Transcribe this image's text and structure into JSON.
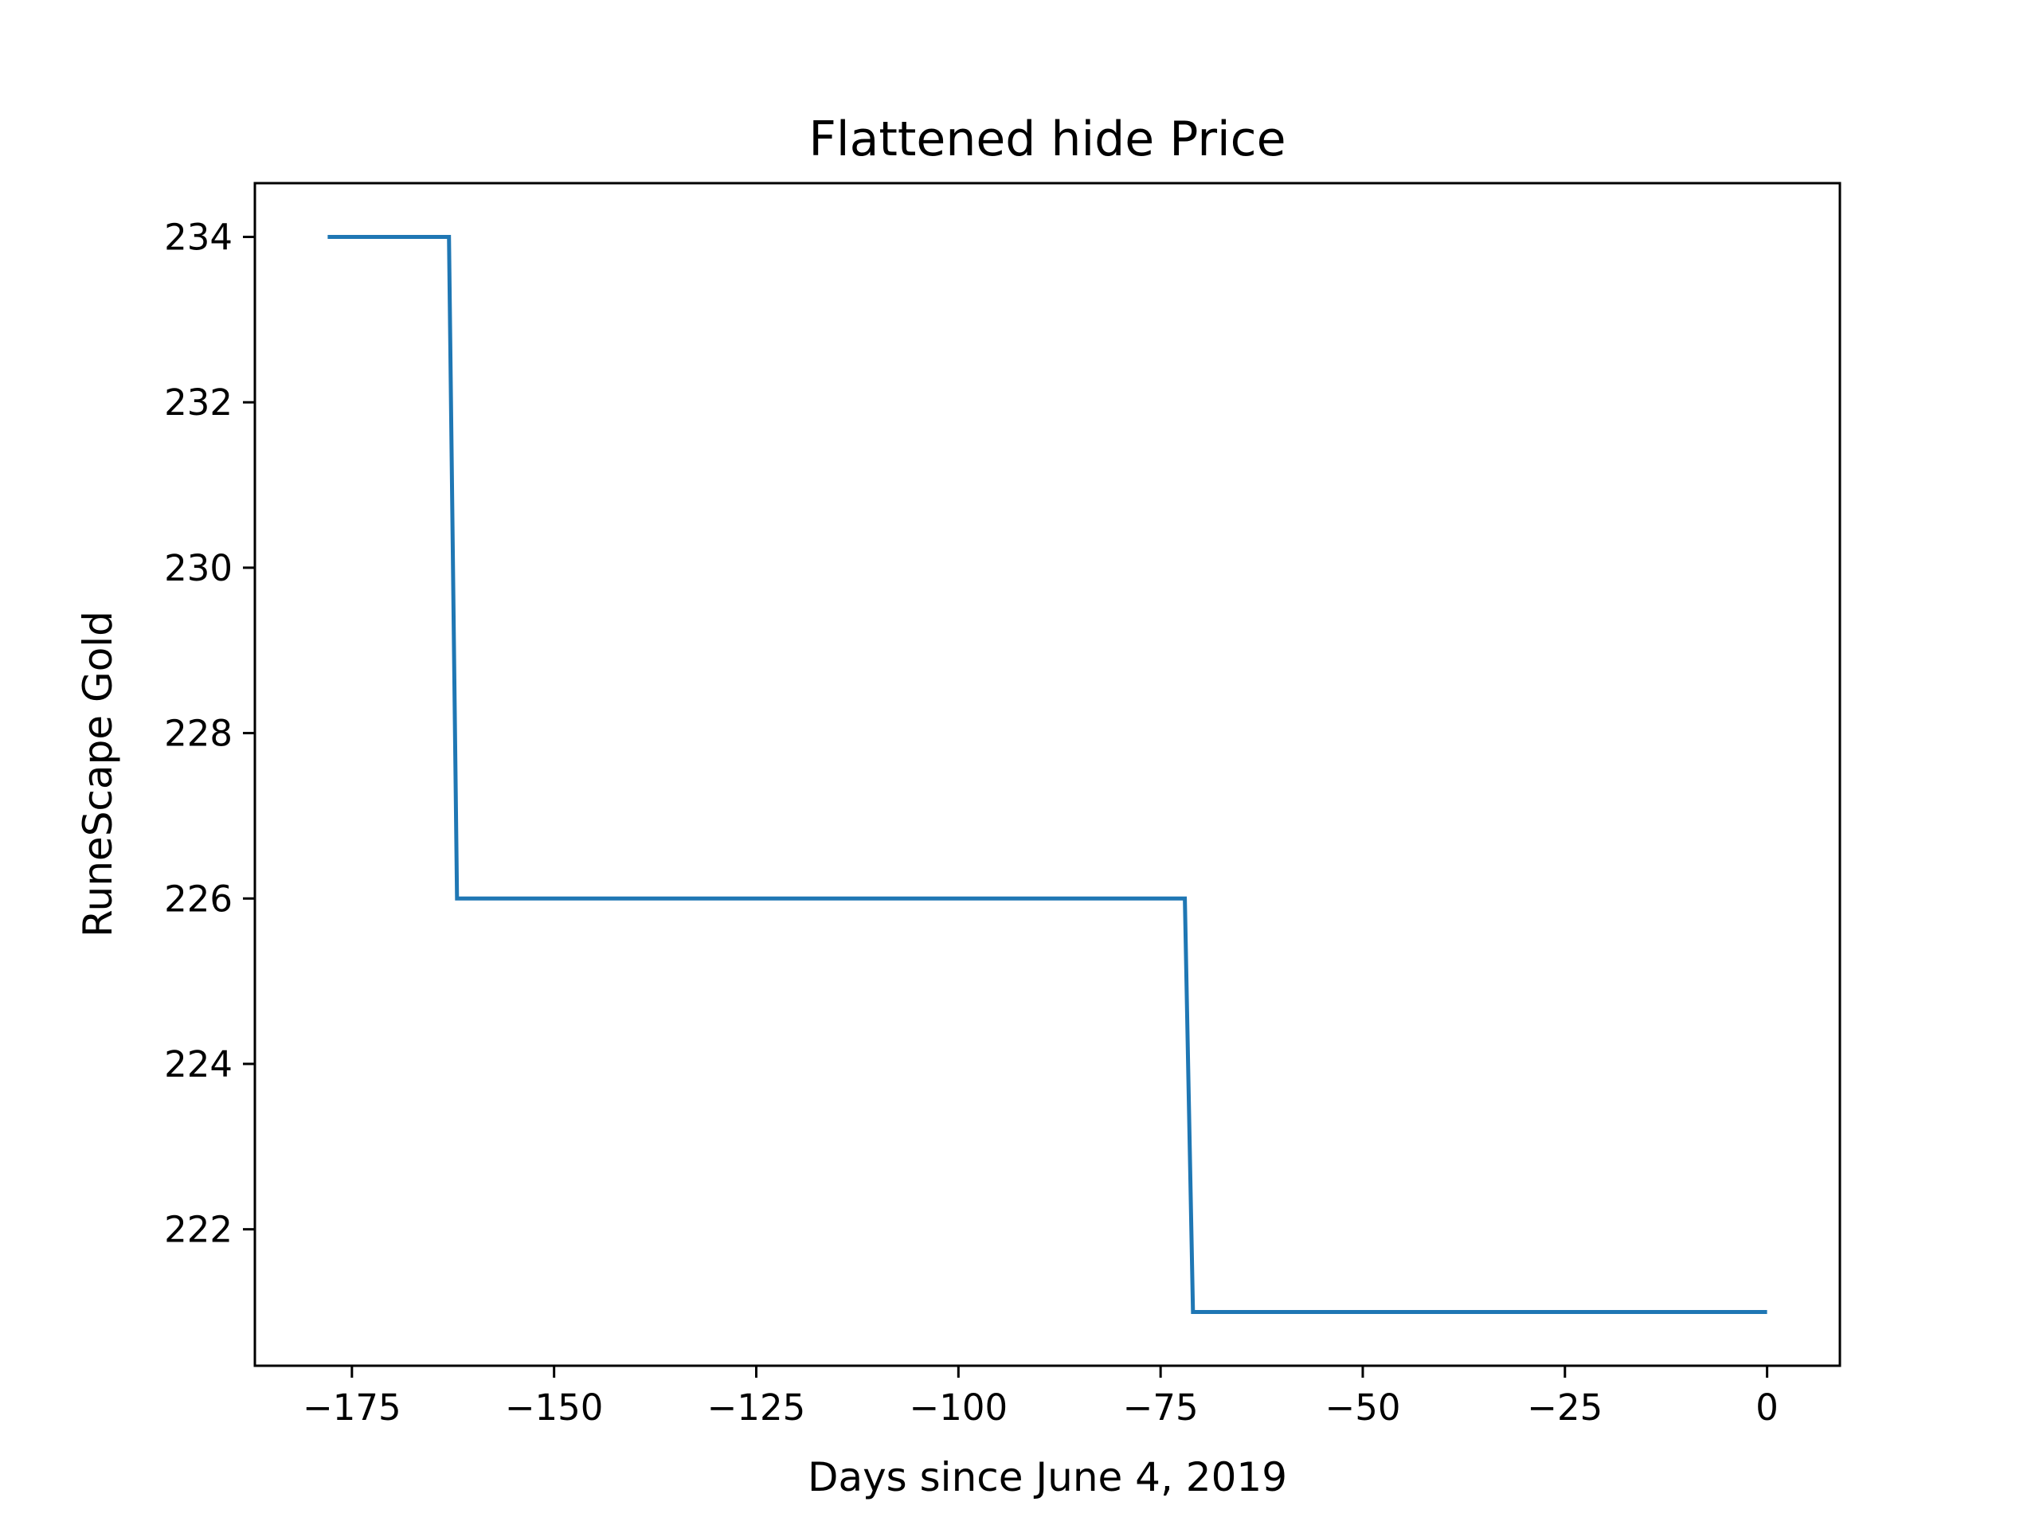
{
  "chart_data": {
    "type": "line",
    "title": "Flattened hide Price",
    "xlabel": "Days since June 4, 2019",
    "ylabel": "RuneScape Gold",
    "xlim": [
      -187,
      9
    ],
    "ylim": [
      220.35,
      234.65
    ],
    "x_ticks": [
      -175,
      -150,
      -125,
      -100,
      -75,
      -50,
      -25,
      0
    ],
    "x_tick_labels": [
      "−175",
      "−150",
      "−125",
      "−100",
      "−75",
      "−50",
      "−25",
      "0"
    ],
    "y_ticks": [
      222,
      224,
      226,
      228,
      230,
      232,
      234
    ],
    "y_tick_labels": [
      "222",
      "224",
      "226",
      "228",
      "230",
      "232",
      "234"
    ],
    "grid": false,
    "series": [
      {
        "color": "#1f77b4",
        "x": [
          -178,
          -163,
          -162,
          -72,
          -71,
          0
        ],
        "y": [
          234,
          234,
          226,
          226,
          221,
          221
        ]
      }
    ]
  }
}
